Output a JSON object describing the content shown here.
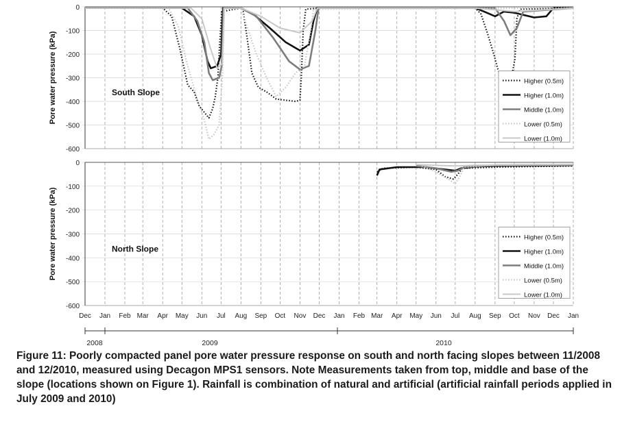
{
  "chart_data": [
    {
      "type": "line",
      "panel_label": "South Slope",
      "ylabel": "Pore water pressure (kPa)",
      "ylim": [
        -600,
        0
      ],
      "yticks": [
        "0",
        "-100",
        "-200",
        "-300",
        "-400",
        "-500",
        "-600"
      ],
      "x_axis": "date",
      "grid": "vertical dashed gridlines at month boundaries",
      "legend_placement": "bottom-right",
      "series": [
        {
          "name": "Higher (0.5m)",
          "style": "dotted black",
          "points": [
            [
              "2008-12-01",
              -5
            ],
            [
              "2009-04-01",
              -5
            ],
            [
              "2009-04-15",
              -40
            ],
            [
              "2009-04-28",
              -180
            ],
            [
              "2009-05-10",
              -330
            ],
            [
              "2009-05-20",
              -360
            ],
            [
              "2009-05-28",
              -420
            ],
            [
              "2009-06-06",
              -450
            ],
            [
              "2009-06-12",
              -470
            ],
            [
              "2009-06-18",
              -430
            ],
            [
              "2009-06-22",
              -380
            ],
            [
              "2009-06-26",
              -300
            ],
            [
              "2009-06-29",
              -150
            ],
            [
              "2009-07-02",
              -20
            ],
            [
              "2009-08-01",
              -5
            ],
            [
              "2009-08-04",
              -10
            ],
            [
              "2009-08-10",
              -120
            ],
            [
              "2009-08-18",
              -280
            ],
            [
              "2009-08-28",
              -340
            ],
            [
              "2009-09-10",
              -360
            ],
            [
              "2009-09-25",
              -390
            ],
            [
              "2009-10-10",
              -395
            ],
            [
              "2009-10-25",
              -400
            ],
            [
              "2009-11-01",
              -395
            ],
            [
              "2009-11-03",
              -300
            ],
            [
              "2009-11-06",
              -100
            ],
            [
              "2009-11-10",
              -10
            ],
            [
              "2009-12-01",
              -5
            ],
            [
              "2010-08-01",
              -5
            ],
            [
              "2010-08-10",
              -30
            ],
            [
              "2010-08-20",
              -110
            ],
            [
              "2010-08-30",
              -200
            ],
            [
              "2010-09-05",
              -260
            ],
            [
              "2010-09-12",
              -310
            ],
            [
              "2010-09-20",
              -300
            ],
            [
              "2010-09-28",
              -280
            ],
            [
              "2010-10-02",
              -220
            ],
            [
              "2010-10-05",
              -50
            ],
            [
              "2010-10-10",
              -10
            ],
            [
              "2011-01-01",
              -5
            ]
          ]
        },
        {
          "name": "Higher (1.0m)",
          "style": "solid black thick",
          "points": [
            [
              "2008-12-01",
              -5
            ],
            [
              "2009-05-01",
              -5
            ],
            [
              "2009-05-20",
              -40
            ],
            [
              "2009-06-01",
              -120
            ],
            [
              "2009-06-10",
              -230
            ],
            [
              "2009-06-15",
              -260
            ],
            [
              "2009-06-25",
              -250
            ],
            [
              "2009-07-01",
              -200
            ],
            [
              "2009-07-04",
              -5
            ],
            [
              "2009-08-01",
              -5
            ],
            [
              "2009-08-20",
              -30
            ],
            [
              "2009-09-15",
              -90
            ],
            [
              "2009-10-10",
              -150
            ],
            [
              "2009-11-01",
              -185
            ],
            [
              "2009-11-15",
              -160
            ],
            [
              "2009-11-22",
              -60
            ],
            [
              "2009-11-28",
              -5
            ],
            [
              "2010-08-01",
              -5
            ],
            [
              "2010-08-15",
              -20
            ],
            [
              "2010-09-01",
              -40
            ],
            [
              "2010-09-15",
              -20
            ],
            [
              "2010-10-01",
              -25
            ],
            [
              "2010-11-01",
              -45
            ],
            [
              "2010-11-20",
              -40
            ],
            [
              "2010-12-01",
              -5
            ],
            [
              "2011-01-01",
              -5
            ]
          ]
        },
        {
          "name": "Middle (1.0m)",
          "style": "solid grey thick",
          "points": [
            [
              "2008-12-01",
              -5
            ],
            [
              "2009-05-10",
              -5
            ],
            [
              "2009-05-25",
              -60
            ],
            [
              "2009-06-05",
              -150
            ],
            [
              "2009-06-12",
              -280
            ],
            [
              "2009-06-18",
              -310
            ],
            [
              "2009-06-28",
              -300
            ],
            [
              "2009-07-02",
              -250
            ],
            [
              "2009-07-05",
              -5
            ],
            [
              "2009-08-01",
              -5
            ],
            [
              "2009-08-25",
              -40
            ],
            [
              "2009-09-20",
              -130
            ],
            [
              "2009-10-15",
              -230
            ],
            [
              "2009-11-01",
              -265
            ],
            [
              "2009-11-15",
              -250
            ],
            [
              "2009-11-25",
              -100
            ],
            [
              "2009-11-30",
              -5
            ],
            [
              "2010-09-01",
              -5
            ],
            [
              "2010-09-15",
              -60
            ],
            [
              "2010-09-25",
              -120
            ],
            [
              "2010-10-05",
              -90
            ],
            [
              "2010-10-15",
              -20
            ],
            [
              "2011-01-01",
              -5
            ]
          ]
        },
        {
          "name": "Lower (0.5m)",
          "style": "dotted light grey",
          "points": [
            [
              "2008-12-01",
              -5
            ],
            [
              "2009-04-10",
              -5
            ],
            [
              "2009-04-25",
              -80
            ],
            [
              "2009-05-10",
              -250
            ],
            [
              "2009-05-25",
              -390
            ],
            [
              "2009-06-05",
              -480
            ],
            [
              "2009-06-12",
              -560
            ],
            [
              "2009-06-20",
              -540
            ],
            [
              "2009-06-28",
              -500
            ],
            [
              "2009-07-03",
              -300
            ],
            [
              "2009-07-06",
              -10
            ],
            [
              "2009-08-01",
              -5
            ],
            [
              "2009-08-10",
              -80
            ],
            [
              "2009-08-25",
              -200
            ],
            [
              "2009-09-10",
              -300
            ],
            [
              "2009-09-25",
              -380
            ],
            [
              "2009-10-10",
              -340
            ],
            [
              "2009-10-25",
              -280
            ],
            [
              "2009-11-08",
              -250
            ],
            [
              "2009-11-18",
              -100
            ],
            [
              "2009-11-22",
              -10
            ],
            [
              "2011-01-01",
              -5
            ]
          ]
        },
        {
          "name": "Lower (1.0m)",
          "style": "solid light grey",
          "points": [
            [
              "2008-12-01",
              -5
            ],
            [
              "2009-05-15",
              -5
            ],
            [
              "2009-06-01",
              -50
            ],
            [
              "2009-06-15",
              -180
            ],
            [
              "2009-06-25",
              -260
            ],
            [
              "2009-07-03",
              -240
            ],
            [
              "2009-07-06",
              -5
            ],
            [
              "2009-08-01",
              -5
            ],
            [
              "2009-09-01",
              -40
            ],
            [
              "2009-10-01",
              -90
            ],
            [
              "2009-11-01",
              -110
            ],
            [
              "2009-11-20",
              -60
            ],
            [
              "2009-11-28",
              -5
            ],
            [
              "2010-08-01",
              -5
            ],
            [
              "2010-10-01",
              -20
            ],
            [
              "2010-11-01",
              -15
            ],
            [
              "2011-01-01",
              -5
            ]
          ]
        }
      ]
    },
    {
      "type": "line",
      "panel_label": "North Slope",
      "ylabel": "Pore water pressure (kPa)",
      "ylim": [
        -600,
        0
      ],
      "yticks": [
        "0",
        "-100",
        "-200",
        "-300",
        "-400",
        "-500",
        "-600"
      ],
      "x_axis": "date",
      "xticks": [
        "Dec",
        "Jan",
        "Feb",
        "Mar",
        "Apr",
        "May",
        "Jun",
        "Jul",
        "Aug",
        "Sep",
        "Oct",
        "Nov",
        "Dec",
        "Jan",
        "Feb",
        "Mar",
        "Apr",
        "May",
        "Jun",
        "Jul",
        "Aug",
        "Sep",
        "Oct",
        "Nov",
        "Dec",
        "Jan"
      ],
      "years": [
        "2008",
        "2009",
        "2010"
      ],
      "grid": "vertical dashed gridlines at month boundaries",
      "legend_placement": "bottom-right",
      "series": [
        {
          "name": "Higher (0.5m)",
          "style": "dotted black",
          "points": [
            [
              "2010-03-01",
              -40
            ],
            [
              "2010-03-10",
              -25
            ],
            [
              "2010-05-01",
              -20
            ],
            [
              "2010-06-01",
              -30
            ],
            [
              "2010-06-15",
              -60
            ],
            [
              "2010-06-28",
              -70
            ],
            [
              "2010-07-05",
              -50
            ],
            [
              "2010-07-12",
              -25
            ],
            [
              "2010-09-01",
              -20
            ],
            [
              "2011-01-01",
              -15
            ]
          ]
        },
        {
          "name": "Higher (1.0m)",
          "style": "solid black thick",
          "points": [
            [
              "2010-03-01",
              -55
            ],
            [
              "2010-03-05",
              -30
            ],
            [
              "2010-04-01",
              -20
            ],
            [
              "2010-05-15",
              -20
            ],
            [
              "2010-06-15",
              -30
            ],
            [
              "2010-07-01",
              -35
            ],
            [
              "2010-07-10",
              -25
            ],
            [
              "2010-08-01",
              -18
            ],
            [
              "2010-09-01",
              -15
            ],
            [
              "2011-01-01",
              -12
            ]
          ]
        },
        {
          "name": "Middle (1.0m)",
          "style": "solid grey thick",
          "points": [
            [
              "2010-05-01",
              -15
            ],
            [
              "2010-06-01",
              -25
            ],
            [
              "2010-06-25",
              -40
            ],
            [
              "2010-07-05",
              -35
            ],
            [
              "2010-07-15",
              -20
            ],
            [
              "2010-09-01",
              -12
            ],
            [
              "2011-01-01",
              -10
            ]
          ]
        },
        {
          "name": "Lower (0.5m)",
          "style": "dotted light grey",
          "points": [
            [
              "2010-05-10",
              -15
            ],
            [
              "2010-06-01",
              -40
            ],
            [
              "2010-06-20",
              -70
            ],
            [
              "2010-07-01",
              -90
            ],
            [
              "2010-07-08",
              -60
            ],
            [
              "2010-07-15",
              -20
            ],
            [
              "2010-09-01",
              -10
            ],
            [
              "2011-01-01",
              -8
            ]
          ]
        },
        {
          "name": "Lower (1.0m)",
          "style": "solid light grey",
          "points": [
            [
              "2010-05-01",
              -10
            ],
            [
              "2010-07-01",
              -15
            ],
            [
              "2010-08-01",
              -12
            ],
            [
              "2011-01-01",
              -10
            ]
          ]
        }
      ]
    }
  ],
  "caption": "Figure 11: Poorly compacted panel pore water pressure response on south and north facing slopes between 11/2008 and 12/2010, measured using Decagon MPS1 sensors.  Note Measurements taken from top, middle and base of the slope (locations shown on Figure 1).  Rainfall is combination of natural and artificial (artificial rainfall periods applied in July 2009 and 2010)"
}
